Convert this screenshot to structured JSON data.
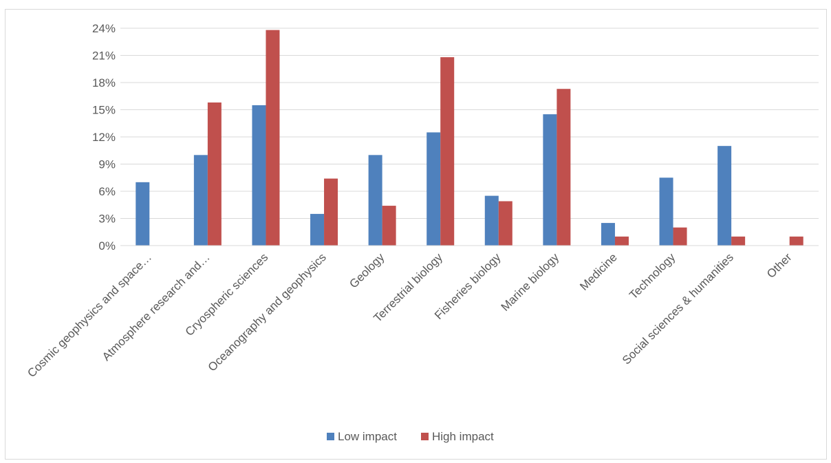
{
  "chart_data": {
    "type": "bar",
    "categories": [
      "Cosmic geophysics and space…",
      "Atmosphere research and…",
      "Cryospheric sciences",
      "Oceanography and geophysics",
      "Geology",
      "Terrestrial biology",
      "Fisheries biology",
      "Marine biology",
      "Medicine",
      "Technology",
      "Social sciences & humanities",
      "Other"
    ],
    "series": [
      {
        "name": "Low impact",
        "color": "#4f81bd",
        "values": [
          7,
          10,
          15.5,
          3.5,
          10,
          12.5,
          5.5,
          14.5,
          2.5,
          7.5,
          11,
          0
        ]
      },
      {
        "name": "High impact",
        "color": "#c0504d",
        "values": [
          0,
          15.8,
          23.8,
          7.4,
          4.4,
          20.8,
          4.9,
          17.3,
          1,
          2,
          1,
          1
        ]
      }
    ],
    "ylim": [
      0,
      24
    ],
    "yticks": [
      "0%",
      "3%",
      "6%",
      "9%",
      "12%",
      "15%",
      "18%",
      "21%",
      "24%"
    ],
    "ytick_values": [
      0,
      3,
      6,
      9,
      12,
      15,
      18,
      21,
      24
    ],
    "grid": true,
    "legend_position": "bottom",
    "title": "",
    "xlabel": "",
    "ylabel": ""
  }
}
